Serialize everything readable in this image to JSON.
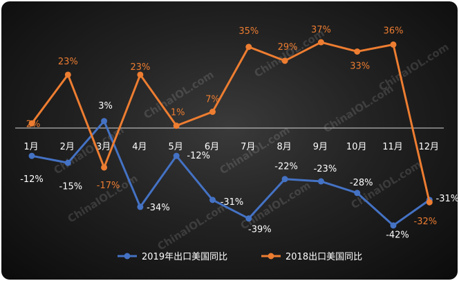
{
  "chart_data": {
    "type": "line",
    "categories": [
      "1月",
      "2月",
      "3月",
      "4月",
      "5月",
      "6月",
      "7月",
      "8月",
      "9月",
      "10月",
      "11月",
      "12月"
    ],
    "series": [
      {
        "name": "2019年出口美国同比",
        "color": "#4472C4",
        "values": [
          -12,
          -15,
          3,
          -34,
          -12,
          -31,
          -39,
          -22,
          -23,
          -28,
          -42,
          -31
        ],
        "labels": [
          "-12%",
          "-15%",
          "3%",
          "-34%",
          "-12%",
          "-31%",
          "-39%",
          "-22%",
          "-23%",
          "-28%",
          "-42%",
          "-31%"
        ]
      },
      {
        "name": "2018出口美国同比",
        "color": "#ED7D31",
        "values": [
          2,
          23,
          -17,
          23,
          1,
          7,
          35,
          29,
          37,
          33,
          36,
          -32
        ],
        "labels": [
          "2%",
          "23%",
          "-17%",
          "23%",
          "1%",
          "7%",
          "35%",
          "29%",
          "37%",
          "33%",
          "36%",
          "-32%"
        ]
      }
    ],
    "ylim": [
      -48,
      42
    ],
    "grid": false,
    "legend": "bottom",
    "watermark": "ChinaIOL.com"
  }
}
